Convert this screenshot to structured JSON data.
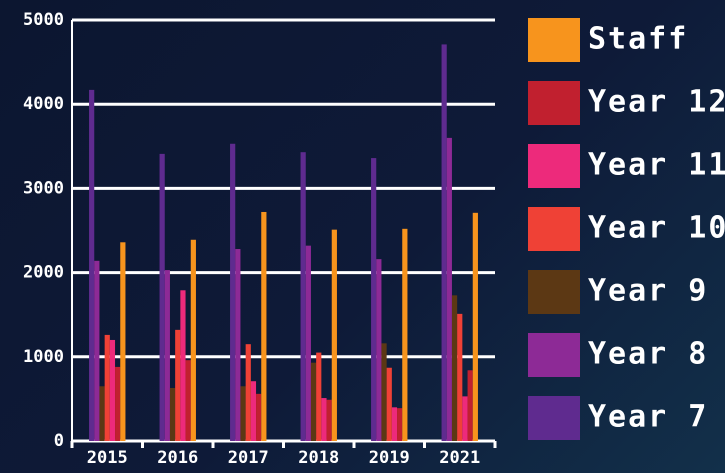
{
  "chart_data": {
    "type": "bar",
    "categories": [
      "2015",
      "2016",
      "2017",
      "2018",
      "2019",
      "2021"
    ],
    "series": [
      {
        "name": "Year 7",
        "color": "#5f2b8f",
        "values": [
          4170,
          3410,
          3530,
          3430,
          3360,
          4710
        ]
      },
      {
        "name": "Year 8",
        "color": "#8d2a96",
        "values": [
          2140,
          2030,
          2280,
          2320,
          2160,
          3600
        ]
      },
      {
        "name": "Year 9",
        "color": "#5c3814",
        "values": [
          650,
          630,
          650,
          930,
          1160,
          1730
        ]
      },
      {
        "name": "Year 10",
        "color": "#ef4136",
        "values": [
          1260,
          1320,
          1150,
          1050,
          870,
          1510
        ]
      },
      {
        "name": "Year 11",
        "color": "#ed2a7b",
        "values": [
          1200,
          1790,
          710,
          510,
          400,
          530
        ]
      },
      {
        "name": "Year 12",
        "color": "#c1202f",
        "values": [
          880,
          960,
          560,
          490,
          390,
          840
        ]
      },
      {
        "name": "Staff",
        "color": "#f7941d",
        "values": [
          2360,
          2390,
          2720,
          2510,
          2520,
          2710
        ]
      }
    ],
    "ylim": [
      0,
      5000
    ],
    "yticks": [
      0,
      1000,
      2000,
      3000,
      4000,
      5000
    ],
    "grid": true,
    "legend": "right"
  }
}
